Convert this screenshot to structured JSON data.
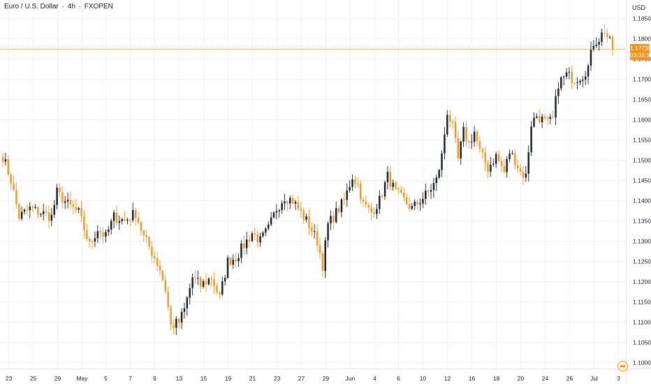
{
  "header": {
    "symbol": "Euro / U.S. Dollar",
    "interval": "4h",
    "exchange": "FXOPEN",
    "separator": "·"
  },
  "axis": {
    "currency": "USD"
  },
  "last_price": {
    "value": "1.17735",
    "countdown": "03:36:30"
  },
  "colors": {
    "up": "#131722",
    "down": "#f7931a",
    "last_line": "#f7931a",
    "grid": "#f2f3f5",
    "axis_text": "#131722",
    "background": "#ffffff"
  },
  "chart_data": {
    "type": "candlestick",
    "y_ticks": [
      "1.10000",
      "1.10500",
      "1.11000",
      "1.11500",
      "1.12000",
      "1.12500",
      "1.13000",
      "1.13500",
      "1.14000",
      "1.14500",
      "1.15000",
      "1.15500",
      "1.16000",
      "1.16500",
      "1.17000",
      "1.17500",
      "1.18000",
      "1.18500"
    ],
    "ylim": [
      1.0985,
      1.1895
    ],
    "x_ticks": [
      "23",
      "25",
      "29",
      "May",
      "5",
      "7",
      "9",
      "13",
      "15",
      "19",
      "21",
      "23",
      "27",
      "29",
      "Jun",
      "4",
      "6",
      "10",
      "12",
      "16",
      "18",
      "20",
      "24",
      "26",
      "Jul",
      "3"
    ],
    "x_tick_slots": [
      2,
      11,
      20,
      29,
      38,
      47,
      56,
      65,
      74,
      83,
      92,
      101,
      110,
      119,
      128,
      137,
      146,
      155,
      164,
      173,
      182,
      191,
      200,
      209,
      218,
      227
    ],
    "grid": true,
    "candle_count": 226,
    "price_path": [
      [
        0,
        1.151
      ],
      [
        3,
        1.145
      ],
      [
        6,
        1.136
      ],
      [
        10,
        1.138
      ],
      [
        14,
        1.137
      ],
      [
        18,
        1.136
      ],
      [
        20,
        1.142
      ],
      [
        24,
        1.139
      ],
      [
        28,
        1.137
      ],
      [
        32,
        1.129
      ],
      [
        35,
        1.133
      ],
      [
        38,
        1.131
      ],
      [
        41,
        1.136
      ],
      [
        45,
        1.135
      ],
      [
        49,
        1.137
      ],
      [
        52,
        1.131
      ],
      [
        56,
        1.126
      ],
      [
        58,
        1.123
      ],
      [
        60,
        1.118
      ],
      [
        62,
        1.109
      ],
      [
        65,
        1.11
      ],
      [
        67,
        1.113
      ],
      [
        70,
        1.121
      ],
      [
        73,
        1.119
      ],
      [
        77,
        1.121
      ],
      [
        80,
        1.116
      ],
      [
        83,
        1.125
      ],
      [
        86,
        1.126
      ],
      [
        89,
        1.129
      ],
      [
        92,
        1.132
      ],
      [
        95,
        1.13
      ],
      [
        98,
        1.133
      ],
      [
        101,
        1.138
      ],
      [
        104,
        1.141
      ],
      [
        107,
        1.14
      ],
      [
        110,
        1.137
      ],
      [
        113,
        1.134
      ],
      [
        116,
        1.13
      ],
      [
        118,
        1.124
      ],
      [
        120,
        1.134
      ],
      [
        123,
        1.137
      ],
      [
        126,
        1.14
      ],
      [
        129,
        1.146
      ],
      [
        131,
        1.144
      ],
      [
        133,
        1.139
      ],
      [
        136,
        1.137
      ],
      [
        139,
        1.14
      ],
      [
        142,
        1.146
      ],
      [
        145,
        1.142
      ],
      [
        148,
        1.14
      ],
      [
        151,
        1.138
      ],
      [
        154,
        1.14
      ],
      [
        157,
        1.142
      ],
      [
        160,
        1.145
      ],
      [
        162,
        1.151
      ],
      [
        164,
        1.162
      ],
      [
        166,
        1.158
      ],
      [
        168,
        1.15
      ],
      [
        170,
        1.157
      ],
      [
        172,
        1.154
      ],
      [
        174,
        1.157
      ],
      [
        176,
        1.152
      ],
      [
        179,
        1.148
      ],
      [
        182,
        1.151
      ],
      [
        185,
        1.147
      ],
      [
        187,
        1.152
      ],
      [
        189,
        1.15
      ],
      [
        191,
        1.147
      ],
      [
        193,
        1.146
      ],
      [
        195,
        1.159
      ],
      [
        197,
        1.161
      ],
      [
        199,
        1.16
      ],
      [
        201,
        1.159
      ],
      [
        203,
        1.16
      ],
      [
        205,
        1.169
      ],
      [
        208,
        1.171
      ],
      [
        211,
        1.17
      ],
      [
        214,
        1.171
      ],
      [
        216,
        1.173
      ],
      [
        218,
        1.179
      ],
      [
        220,
        1.18
      ],
      [
        222,
        1.182
      ],
      [
        224,
        1.179
      ],
      [
        225,
        1.17735
      ]
    ]
  }
}
